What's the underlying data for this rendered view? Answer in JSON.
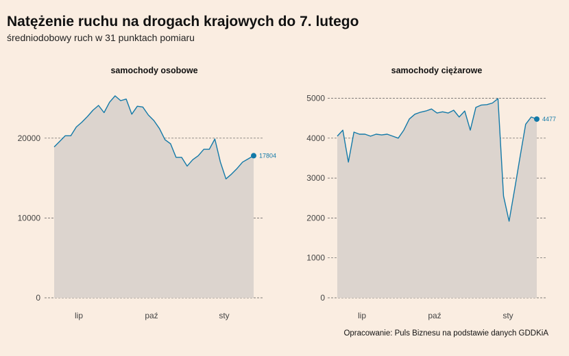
{
  "header": {
    "title": "Natężenie ruchu na drogach krajowych do 7. lutego",
    "subtitle": "średniodobowy ruch w 31 punktach pomiaru"
  },
  "caption": "Opracowanie: Puls Biznesu na podstawie danych GDDKiA",
  "chart_data": [
    {
      "type": "area",
      "title": "samochody osobowe",
      "x_tick_labels": [
        "lip",
        "paź",
        "sty"
      ],
      "y_ticks": [
        0,
        10000,
        20000
      ],
      "ylim": [
        0,
        26500
      ],
      "grid": "horizontal-dashed",
      "series": [
        {
          "values": [
            18900,
            19600,
            20300,
            20300,
            21400,
            22000,
            22700,
            23500,
            24100,
            23200,
            24500,
            25300,
            24700,
            24900,
            23000,
            24000,
            23900,
            22900,
            22200,
            21200,
            19800,
            19300,
            17600,
            17600,
            16500,
            17300,
            17800,
            18600,
            18600,
            19900,
            17000,
            14900,
            15500,
            16200,
            17000,
            17400,
            17804
          ]
        }
      ],
      "end_label": "17804"
    },
    {
      "type": "area",
      "title": "samochody ciężarowe",
      "x_tick_labels": [
        "lip",
        "paź",
        "sty"
      ],
      "y_ticks": [
        0,
        1000,
        2000,
        3000,
        4000,
        5000
      ],
      "ylim": [
        0,
        5300
      ],
      "grid": "horizontal-dashed",
      "series": [
        {
          "values": [
            4050,
            4200,
            3400,
            4150,
            4100,
            4100,
            4050,
            4100,
            4080,
            4100,
            4050,
            4000,
            4200,
            4480,
            4600,
            4650,
            4680,
            4730,
            4630,
            4660,
            4630,
            4700,
            4530,
            4680,
            4200,
            4770,
            4830,
            4840,
            4880,
            4990,
            2550,
            1920,
            2720,
            3550,
            4350,
            4530,
            4477
          ]
        }
      ],
      "end_label": "4477"
    }
  ]
}
